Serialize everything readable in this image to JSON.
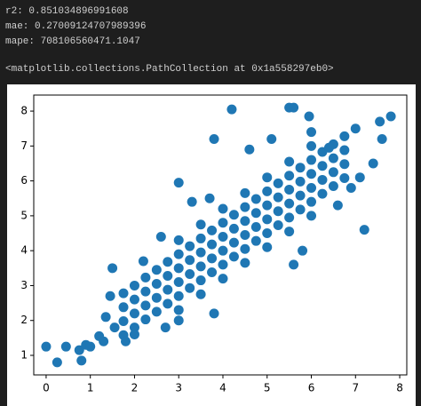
{
  "output": {
    "lines": [
      "r2:  0.851034896991608",
      "mae:  0.27009124707989396",
      "mape:  708106560471.1047"
    ],
    "repr": "<matplotlib.collections.PathCollection at 0x1a558297eb0>"
  },
  "chart_data": {
    "type": "scatter",
    "color": "#1f77b4",
    "xlim": [
      -0.28,
      8.16
    ],
    "ylim": [
      0.44,
      8.46
    ],
    "xticks": [
      0,
      1,
      2,
      3,
      4,
      5,
      6,
      7,
      8
    ],
    "yticks": [
      1,
      2,
      3,
      4,
      5,
      6,
      7,
      8
    ],
    "x": [
      1.75,
      1.75,
      1.75,
      1.75,
      2.0,
      2.0,
      2.0,
      2.0,
      2.25,
      2.25,
      2.25,
      2.25,
      2.5,
      2.5,
      2.5,
      2.5,
      2.75,
      2.75,
      2.75,
      2.75,
      3.0,
      3.0,
      3.0,
      3.0,
      3.25,
      3.25,
      3.25,
      3.25,
      3.5,
      3.5,
      3.5,
      3.5,
      3.75,
      3.75,
      3.75,
      3.75,
      4.0,
      4.0,
      4.0,
      4.0,
      4.25,
      4.25,
      4.25,
      4.25,
      4.5,
      4.5,
      4.5,
      4.5,
      4.75,
      4.75,
      4.75,
      4.75,
      5.0,
      5.0,
      5.0,
      5.0,
      5.25,
      5.25,
      5.25,
      5.25,
      5.5,
      5.5,
      5.5,
      5.5,
      5.75,
      5.75,
      5.75,
      5.75,
      6.0,
      6.0,
      6.0,
      6.0,
      6.25,
      6.25,
      6.25,
      6.25,
      6.5,
      6.5,
      6.5,
      6.5,
      6.75,
      6.75,
      6.75,
      6.75,
      3.0,
      3.0,
      3.5,
      3.5,
      4.0,
      4.0,
      4.5,
      4.5,
      5.0,
      5.0,
      5.5,
      5.5,
      6.0,
      6.0,
      0,
      0.25,
      0.45,
      0.75,
      0.8,
      0.9,
      1.0,
      1.2,
      1.3,
      1.5,
      1.35,
      1.45,
      1.55,
      1.8,
      2.0,
      2.7,
      3.0,
      3.8,
      2.2,
      2.6,
      3.0,
      3.3,
      3.7,
      3.8,
      4.2,
      4.6,
      5.1,
      5.5,
      5.6,
      5.95,
      6.0,
      6.4,
      7.55,
      7.8,
      7.6,
      7.4,
      7.1,
      7.2,
      5.8,
      5.6,
      6.6,
      7.0,
      6.9
    ],
    "values": [
      1.58,
      1.98,
      2.38,
      2.78,
      1.8,
      2.2,
      2.6,
      3.0,
      2.03,
      2.43,
      2.83,
      3.23,
      2.25,
      2.65,
      3.05,
      3.45,
      2.48,
      2.88,
      3.28,
      3.68,
      2.7,
      3.1,
      3.5,
      3.9,
      2.93,
      3.33,
      3.73,
      4.13,
      3.15,
      3.55,
      3.95,
      4.35,
      3.38,
      3.78,
      4.18,
      4.58,
      3.6,
      4.0,
      4.4,
      4.8,
      3.83,
      4.23,
      4.63,
      5.03,
      4.05,
      4.45,
      4.85,
      5.25,
      4.28,
      4.68,
      5.08,
      5.48,
      4.5,
      4.9,
      5.3,
      5.7,
      4.73,
      5.13,
      5.53,
      5.93,
      4.95,
      5.35,
      5.75,
      6.15,
      5.18,
      5.58,
      5.98,
      6.38,
      5.4,
      5.8,
      6.2,
      6.6,
      5.63,
      6.03,
      6.43,
      6.83,
      5.85,
      6.25,
      6.65,
      7.05,
      6.08,
      6.48,
      6.88,
      7.28,
      2.3,
      4.3,
      2.75,
      4.75,
      3.2,
      5.2,
      3.65,
      5.65,
      4.1,
      6.1,
      4.55,
      6.55,
      5.0,
      7.0,
      1.25,
      0.8,
      1.25,
      1.15,
      0.85,
      1.3,
      1.25,
      1.55,
      1.4,
      3.5,
      2.1,
      2.7,
      1.8,
      1.4,
      1.6,
      1.8,
      2.0,
      2.2,
      3.7,
      4.4,
      5.95,
      5.4,
      5.5,
      7.2,
      8.05,
      6.9,
      7.2,
      8.1,
      8.1,
      7.85,
      7.4,
      6.95,
      7.7,
      7.85,
      7.2,
      6.5,
      6.1,
      4.6,
      4.0,
      3.6,
      5.3,
      7.5,
      5.8
    ]
  }
}
